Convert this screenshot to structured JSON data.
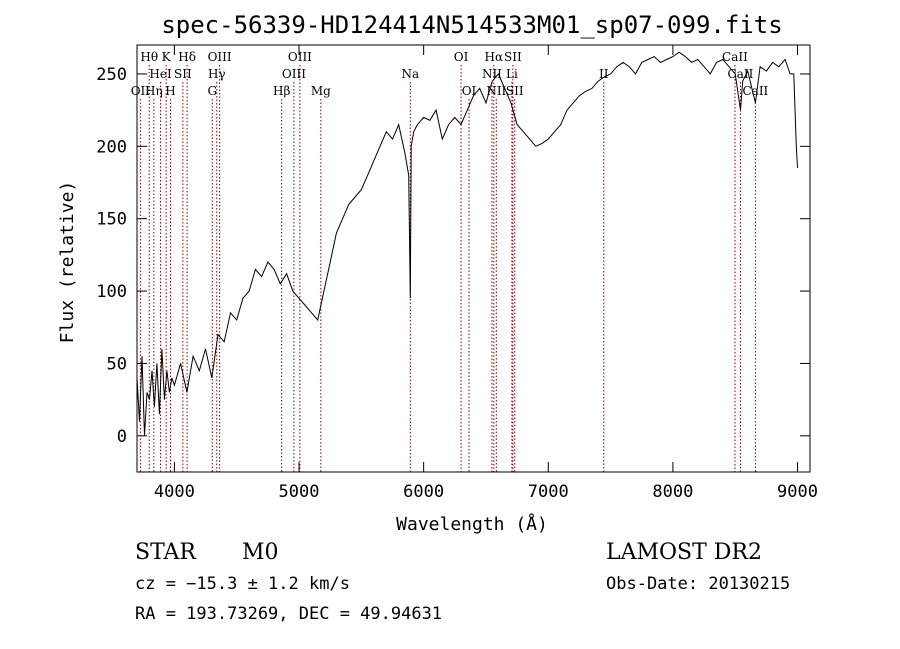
{
  "chart_data": {
    "type": "line",
    "title": "spec-56339-HD124414N514533M01_sp07-099.fits",
    "xlabel": "Wavelength (Å)",
    "ylabel": "Flux (relative)",
    "xlim": [
      3700,
      9100
    ],
    "ylim": [
      -25,
      270
    ],
    "x_ticks": [
      4000,
      5000,
      6000,
      7000,
      8000,
      9000
    ],
    "y_ticks": [
      0,
      50,
      100,
      150,
      200,
      250
    ],
    "grid": false,
    "line_color": "#000000",
    "marker_color": "#8b0000",
    "series": [
      {
        "x": [
          3700,
          3720,
          3740,
          3760,
          3780,
          3800,
          3820,
          3840,
          3860,
          3880,
          3900,
          3920,
          3940,
          3960,
          3980,
          4000,
          4050,
          4100,
          4150,
          4200,
          4250,
          4300,
          4350,
          4400,
          4450,
          4500,
          4550,
          4600,
          4650,
          4700,
          4750,
          4800,
          4850,
          4900,
          4950,
          5000,
          5050,
          5100,
          5150,
          5200,
          5250,
          5300,
          5350,
          5400,
          5450,
          5500,
          5550,
          5600,
          5650,
          5700,
          5750,
          5800,
          5850,
          5880,
          5893,
          5900,
          5920,
          5950,
          6000,
          6050,
          6100,
          6150,
          6200,
          6250,
          6300,
          6350,
          6400,
          6450,
          6500,
          6550,
          6600,
          6650,
          6700,
          6750,
          6800,
          6850,
          6900,
          6950,
          7000,
          7050,
          7100,
          7150,
          7200,
          7250,
          7300,
          7350,
          7400,
          7450,
          7500,
          7550,
          7600,
          7650,
          7700,
          7750,
          7800,
          7850,
          7900,
          7950,
          8000,
          8050,
          8100,
          8150,
          8200,
          8250,
          8300,
          8350,
          8400,
          8450,
          8500,
          8542,
          8560,
          8600,
          8662,
          8700,
          8750,
          8800,
          8850,
          8900,
          8940,
          8970,
          8990,
          9000
        ],
        "y": [
          40,
          10,
          55,
          0,
          30,
          25,
          45,
          20,
          50,
          15,
          60,
          25,
          45,
          30,
          40,
          35,
          50,
          30,
          55,
          45,
          60,
          40,
          70,
          65,
          85,
          80,
          95,
          100,
          115,
          110,
          120,
          115,
          105,
          112,
          100,
          95,
          90,
          85,
          80,
          100,
          120,
          140,
          150,
          160,
          165,
          170,
          180,
          190,
          200,
          210,
          205,
          215,
          195,
          180,
          95,
          200,
          210,
          215,
          220,
          218,
          225,
          205,
          215,
          220,
          215,
          225,
          235,
          240,
          230,
          245,
          250,
          240,
          230,
          215,
          210,
          205,
          200,
          202,
          205,
          210,
          215,
          225,
          230,
          235,
          238,
          240,
          245,
          248,
          250,
          255,
          258,
          255,
          250,
          258,
          260,
          262,
          258,
          260,
          262,
          265,
          262,
          258,
          260,
          255,
          250,
          258,
          260,
          255,
          250,
          225,
          245,
          252,
          230,
          255,
          252,
          258,
          255,
          260,
          250,
          250,
          200,
          185
        ]
      }
    ],
    "line_markers": [
      {
        "label": "Hθ",
        "wavelength": 3798,
        "row": 1
      },
      {
        "label": "OII",
        "wavelength": 3727,
        "row": 3
      },
      {
        "label": "K",
        "wavelength": 3934,
        "row": 1
      },
      {
        "label": "Hδ",
        "wavelength": 4102,
        "row": 1
      },
      {
        "label": "HeI",
        "wavelength": 3889,
        "row": 2
      },
      {
        "label": "SII",
        "wavelength": 4068,
        "row": 2
      },
      {
        "label": "Hη",
        "wavelength": 3835,
        "row": 3
      },
      {
        "label": "H",
        "wavelength": 3969,
        "row": 3
      },
      {
        "label": "OIII",
        "wavelength": 4363,
        "row": 1
      },
      {
        "label": "Hγ",
        "wavelength": 4340,
        "row": 2
      },
      {
        "label": "G",
        "wavelength": 4304,
        "row": 3
      },
      {
        "label": "Hβ",
        "wavelength": 4861,
        "row": 3
      },
      {
        "label": "OIII",
        "wavelength": 5007,
        "row": 1
      },
      {
        "label": "OIII",
        "wavelength": 4959,
        "row": 2
      },
      {
        "label": "Mg",
        "wavelength": 5175,
        "row": 3
      },
      {
        "label": "Na",
        "wavelength": 5893,
        "row": 2
      },
      {
        "label": "OI",
        "wavelength": 6300,
        "row": 1
      },
      {
        "label": "OI",
        "wavelength": 6364,
        "row": 3
      },
      {
        "label": "Hα",
        "wavelength": 6563,
        "row": 1
      },
      {
        "label": "SII",
        "wavelength": 6716,
        "row": 1
      },
      {
        "label": "NII",
        "wavelength": 6548,
        "row": 2
      },
      {
        "label": "Li",
        "wavelength": 6708,
        "row": 2
      },
      {
        "label": "NII",
        "wavelength": 6583,
        "row": 3
      },
      {
        "label": "SII",
        "wavelength": 6731,
        "row": 3
      },
      {
        "label": "II",
        "wavelength": 7445,
        "row": 2
      },
      {
        "label": "CaII",
        "wavelength": 8498,
        "row": 1
      },
      {
        "label": "CaII",
        "wavelength": 8542,
        "row": 2
      },
      {
        "label": "CaII",
        "wavelength": 8662,
        "row": 3
      }
    ]
  },
  "info": {
    "object_class": "STAR",
    "subclass": "M0",
    "survey": "LAMOST DR2",
    "velocity": "cz = −15.3 ± 1.2 km/s",
    "obs_date": "Obs-Date: 20130215",
    "coords": "RA = 193.73269, DEC =  49.94631"
  }
}
